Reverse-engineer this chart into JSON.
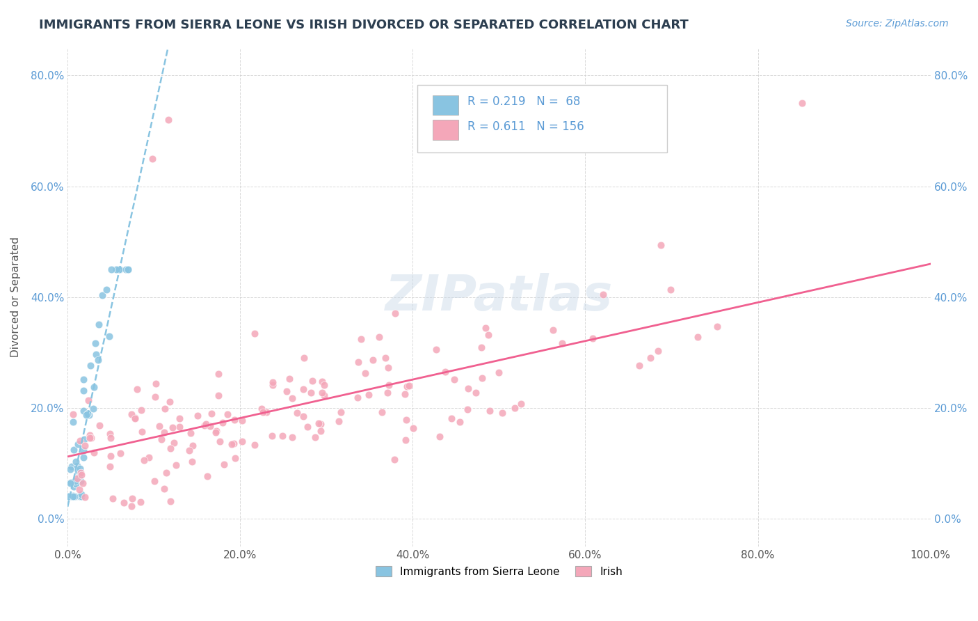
{
  "title": "IMMIGRANTS FROM SIERRA LEONE VS IRISH DIVORCED OR SEPARATED CORRELATION CHART",
  "source_text": "Source: ZipAtlas.com",
  "xlabel": "",
  "ylabel": "Divorced or Separated",
  "legend_label_1": "Immigrants from Sierra Leone",
  "legend_label_2": "Irish",
  "r1": 0.219,
  "n1": 68,
  "r2": 0.611,
  "n2": 156,
  "color1": "#89c4e1",
  "color2": "#f4a7b9",
  "line1_color": "#89c4e1",
  "line2_color": "#f06090",
  "title_color": "#2c3e50",
  "annotation_color": "#5b9bd5",
  "xlim": [
    0.0,
    1.0
  ],
  "ylim": [
    -0.05,
    0.85
  ],
  "x_ticks": [
    0.0,
    0.2,
    0.4,
    0.6,
    0.8,
    1.0
  ],
  "x_tick_labels": [
    "0.0%",
    "20.0%",
    "40.0%",
    "60.0%",
    "80.0%",
    "100.0%"
  ],
  "y_ticks": [
    0.0,
    0.2,
    0.4,
    0.6,
    0.8
  ],
  "y_tick_labels": [
    "0.0%",
    "20.0%",
    "40.0%",
    "60.0%",
    "80.0%"
  ],
  "watermark": "ZIPatlas",
  "background_color": "#ffffff",
  "grid_color": "#d0d0d0"
}
